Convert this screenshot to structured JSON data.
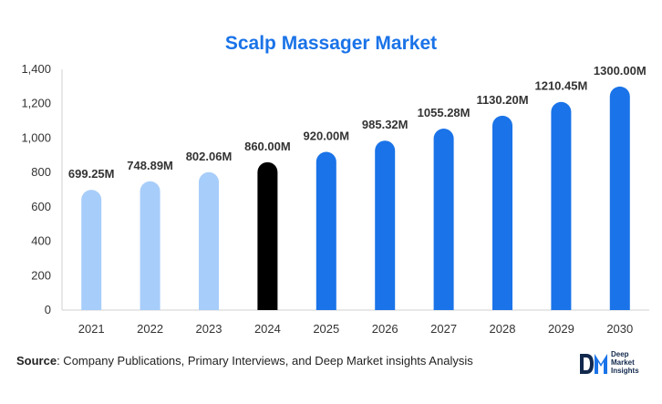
{
  "chart_data": {
    "type": "bar",
    "title": "Scalp Massager Market",
    "categories": [
      "2021",
      "2022",
      "2023",
      "2024",
      "2025",
      "2026",
      "2027",
      "2028",
      "2029",
      "2030"
    ],
    "values": [
      699.25,
      748.89,
      802.06,
      860.0,
      920.0,
      985.32,
      1055.28,
      1130.2,
      1210.45,
      1300.0
    ],
    "data_labels": [
      "699.25M",
      "748.89M",
      "802.06M",
      "860.00M",
      "920.00M",
      "985.32M",
      "1055.28M",
      "1130.20M",
      "1210.45M",
      "1300.00M"
    ],
    "colors": [
      "#a7cdfa",
      "#a7cdfa",
      "#a7cdfa",
      "#000000",
      "#1a73e8",
      "#1a73e8",
      "#1a73e8",
      "#1a73e8",
      "#1a73e8",
      "#1a73e8"
    ],
    "ylim": [
      0,
      1400
    ],
    "yticks": [
      "0",
      "200",
      "400",
      "600",
      "800",
      "1,000",
      "1,200",
      "1,400"
    ],
    "xlabel": "",
    "ylabel": "",
    "grid": false
  },
  "source": {
    "label": "Source",
    "text": ": Company Publications, Primary Interviews, and Deep Market insights Analysis"
  },
  "logo": {
    "mark": "DM",
    "lines": [
      "Deep",
      "Market",
      "Insights"
    ]
  }
}
